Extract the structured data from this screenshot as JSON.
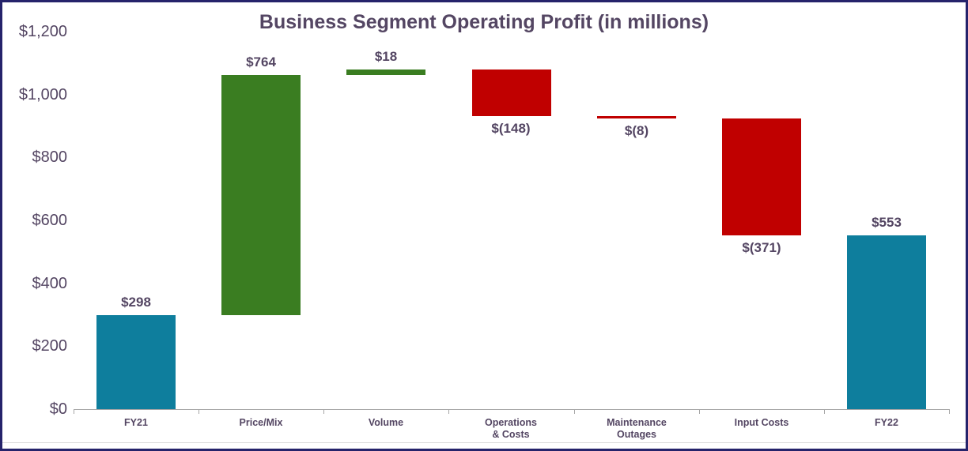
{
  "frame": {
    "border_color": "#25236B",
    "background": "#FFFFFF",
    "hairline_color": "#D9D9D9"
  },
  "chart_data": {
    "type": "bar",
    "subtype": "waterfall",
    "title": "Business Segment Operating Profit (in millions)",
    "title_color": "#544663",
    "categories": [
      "FY21",
      "Price/Mix",
      "Volume",
      "Operations & Costs",
      "Maintenance Outages",
      "Input Costs",
      "FY22"
    ],
    "bars": [
      {
        "category": "FY21",
        "category_lines": [
          "FY21"
        ],
        "kind": "total",
        "value": 298,
        "label": "$298"
      },
      {
        "category": "Price/Mix",
        "category_lines": [
          "Price/Mix"
        ],
        "kind": "increase",
        "value": 764,
        "label": "$764"
      },
      {
        "category": "Volume",
        "category_lines": [
          "Volume"
        ],
        "kind": "increase",
        "value": 18,
        "label": "$18"
      },
      {
        "category": "Operations & Costs",
        "category_lines": [
          "Operations",
          "& Costs"
        ],
        "kind": "decrease",
        "value": -148,
        "label": "$(148)"
      },
      {
        "category": "Maintenance Outages",
        "category_lines": [
          "Maintenance",
          "Outages"
        ],
        "kind": "decrease",
        "value": -8,
        "label": "$(8)"
      },
      {
        "category": "Input Costs",
        "category_lines": [
          "Input Costs"
        ],
        "kind": "decrease",
        "value": -371,
        "label": "$(371)"
      },
      {
        "category": "FY22",
        "category_lines": [
          "FY22"
        ],
        "kind": "total",
        "value": 553,
        "label": "$553"
      }
    ],
    "colors": {
      "total": "#0E7E9D",
      "increase": "#3A7D21",
      "decrease": "#C00000"
    },
    "y_axis": {
      "ticks": [
        "$0",
        "$200",
        "$400",
        "$600",
        "$800",
        "$1,000",
        "$1,200"
      ],
      "tick_values": [
        0,
        200,
        400,
        600,
        800,
        1000,
        1200
      ],
      "min": 0,
      "max": 1200,
      "label_color": "#544663"
    },
    "x_axis": {
      "line_color": "#A6A6A6",
      "label_color": "#544663"
    },
    "gridlines": false,
    "legend": false
  }
}
